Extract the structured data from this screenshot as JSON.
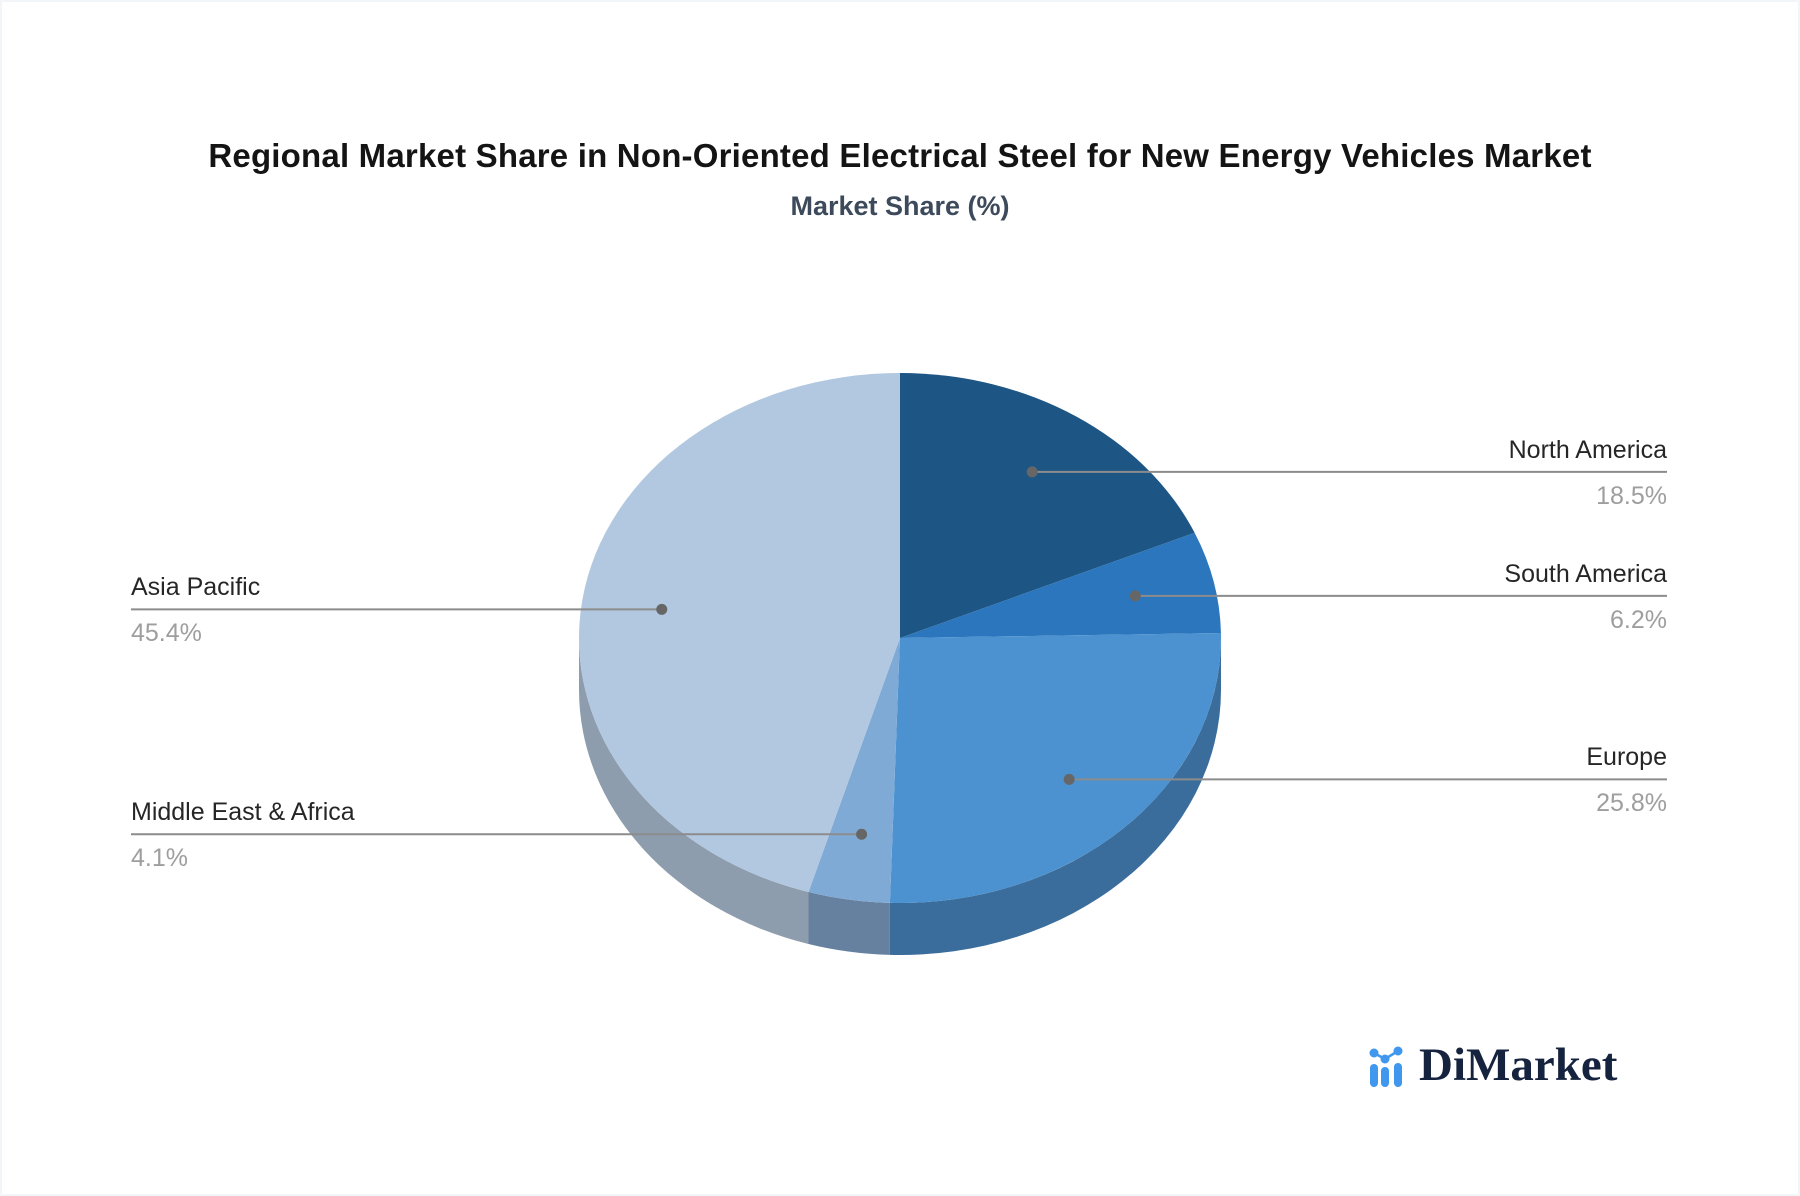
{
  "chart_data": {
    "type": "pie",
    "title": "Regional Market Share in Non-Oriented Electrical Steel for New Energy Vehicles Market",
    "subtitle": "Market Share (%)",
    "unit": "%",
    "style": "pie-3d",
    "clockwise": true,
    "start_angle": "12-oclock",
    "legend_position": "callout-labels",
    "slices": [
      {
        "label": "North America",
        "value": 18.5,
        "display": "18.5%",
        "color": "#1d5585",
        "side_color": "#153f63",
        "callout_side": "right"
      },
      {
        "label": "South America",
        "value": 6.2,
        "display": "6.2%",
        "color": "#2b76bc",
        "side_color": "#1f578c",
        "callout_side": "right"
      },
      {
        "label": "Europe",
        "value": 25.8,
        "display": "25.8%",
        "color": "#4c92d0",
        "side_color": "#3a6d9c",
        "callout_side": "right"
      },
      {
        "label": "Middle East & Africa",
        "value": 4.1,
        "display": "4.1%",
        "color": "#80aad6",
        "side_color": "#65819f",
        "callout_side": "left"
      },
      {
        "label": "Asia Pacific",
        "value": 45.4,
        "display": "45.4%",
        "color": "#b2c8e0",
        "side_color": "#8d9dae",
        "callout_side": "left"
      }
    ],
    "colors": {
      "leader_line": "#8c8c8c",
      "leader_dot": "#666666",
      "label_text": "#262626",
      "value_text": "#9e9e9e",
      "title_text": "#141414",
      "subtitle_text": "#3d4a5b"
    }
  },
  "branding": {
    "logo_text": "DiMarket",
    "logo_icon": "bar-line-chart-icon",
    "icon_color": "#3f97ee",
    "text_color": "#15233f"
  }
}
